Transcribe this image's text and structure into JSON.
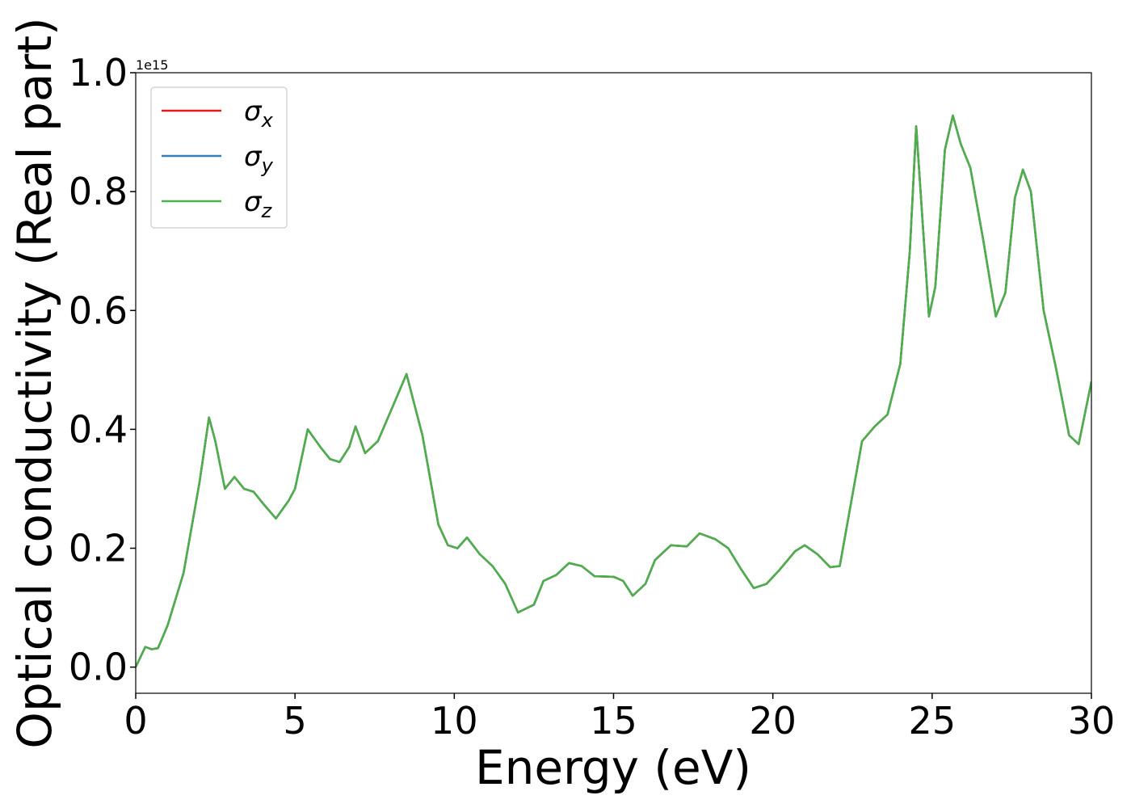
{
  "chart_data": {
    "type": "line",
    "xlabel": "Energy (eV)",
    "ylabel": "Optical conductivity (Real part)",
    "y_offset_label": "1e15",
    "xlim": [
      0,
      30
    ],
    "xticks": [
      0,
      5,
      10,
      15,
      20,
      25,
      30
    ],
    "ylim": [
      -0.044,
      1.0
    ],
    "yticks": [
      {
        "value": 0,
        "label": "0.0"
      },
      0.2,
      0.4,
      0.6,
      0.8,
      {
        "value": 1,
        "label": "1.0"
      }
    ],
    "legend": "upper left",
    "x": [
      0,
      0.3,
      0.5,
      0.7,
      1.0,
      1.5,
      2.0,
      2.3,
      2.5,
      2.8,
      3.1,
      3.4,
      3.7,
      4.0,
      4.4,
      4.8,
      5.0,
      5.4,
      5.8,
      6.1,
      6.4,
      6.7,
      6.9,
      7.2,
      7.6,
      8.0,
      8.5,
      9.0,
      9.5,
      9.8,
      10.1,
      10.4,
      10.8,
      11.2,
      11.6,
      12.0,
      12.5,
      12.8,
      13.2,
      13.6,
      14.0,
      14.4,
      15.0,
      15.3,
      15.6,
      16.0,
      16.3,
      16.8,
      17.3,
      17.7,
      18.2,
      18.6,
      19.0,
      19.4,
      19.8,
      20.2,
      20.7,
      21.0,
      21.4,
      21.8,
      22.1,
      22.4,
      22.8,
      23.2,
      23.6,
      24.0,
      24.3,
      24.5,
      24.7,
      24.9,
      25.1,
      25.4,
      25.65,
      25.9,
      26.2,
      26.6,
      27.0,
      27.3,
      27.6,
      27.85,
      28.1,
      28.5,
      28.9,
      29.3,
      29.6,
      30.0
    ],
    "series": [
      {
        "name": "σx",
        "color": "#e41a1c",
        "values": [
          0.0,
          0.034,
          0.03,
          0.032,
          0.07,
          0.158,
          0.31,
          0.42,
          0.38,
          0.3,
          0.32,
          0.3,
          0.295,
          0.275,
          0.25,
          0.28,
          0.3,
          0.4,
          0.37,
          0.35,
          0.345,
          0.37,
          0.405,
          0.36,
          0.38,
          0.43,
          0.493,
          0.39,
          0.24,
          0.205,
          0.2,
          0.218,
          0.19,
          0.17,
          0.14,
          0.092,
          0.105,
          0.145,
          0.155,
          0.175,
          0.17,
          0.153,
          0.152,
          0.145,
          0.12,
          0.14,
          0.18,
          0.205,
          0.203,
          0.225,
          0.215,
          0.2,
          0.165,
          0.133,
          0.14,
          0.163,
          0.195,
          0.205,
          0.19,
          0.168,
          0.17,
          0.26,
          0.38,
          0.405,
          0.425,
          0.51,
          0.7,
          0.91,
          0.75,
          0.59,
          0.64,
          0.87,
          0.928,
          0.88,
          0.84,
          0.72,
          0.59,
          0.63,
          0.79,
          0.837,
          0.8,
          0.6,
          0.5,
          0.39,
          0.375,
          0.48
        ]
      },
      {
        "name": "σy",
        "color": "#377eb8",
        "values": [
          0.0,
          0.034,
          0.03,
          0.032,
          0.07,
          0.158,
          0.31,
          0.42,
          0.38,
          0.3,
          0.32,
          0.3,
          0.295,
          0.275,
          0.25,
          0.28,
          0.3,
          0.4,
          0.37,
          0.35,
          0.345,
          0.37,
          0.405,
          0.36,
          0.38,
          0.43,
          0.493,
          0.39,
          0.24,
          0.205,
          0.2,
          0.218,
          0.19,
          0.17,
          0.14,
          0.092,
          0.105,
          0.145,
          0.155,
          0.175,
          0.17,
          0.153,
          0.152,
          0.145,
          0.12,
          0.14,
          0.18,
          0.205,
          0.203,
          0.225,
          0.215,
          0.2,
          0.165,
          0.133,
          0.14,
          0.163,
          0.195,
          0.205,
          0.19,
          0.168,
          0.17,
          0.26,
          0.38,
          0.405,
          0.425,
          0.51,
          0.7,
          0.91,
          0.75,
          0.59,
          0.64,
          0.87,
          0.928,
          0.88,
          0.84,
          0.72,
          0.59,
          0.63,
          0.79,
          0.837,
          0.8,
          0.6,
          0.5,
          0.39,
          0.375,
          0.48
        ]
      },
      {
        "name": "σz",
        "color": "#4daf4a",
        "values": [
          0.0,
          0.034,
          0.03,
          0.032,
          0.07,
          0.158,
          0.31,
          0.42,
          0.38,
          0.3,
          0.32,
          0.3,
          0.295,
          0.275,
          0.25,
          0.28,
          0.3,
          0.4,
          0.37,
          0.35,
          0.345,
          0.37,
          0.405,
          0.36,
          0.38,
          0.43,
          0.493,
          0.39,
          0.24,
          0.205,
          0.2,
          0.218,
          0.19,
          0.17,
          0.14,
          0.092,
          0.105,
          0.145,
          0.155,
          0.175,
          0.17,
          0.153,
          0.152,
          0.145,
          0.12,
          0.14,
          0.18,
          0.205,
          0.203,
          0.225,
          0.215,
          0.2,
          0.165,
          0.133,
          0.14,
          0.163,
          0.195,
          0.205,
          0.19,
          0.168,
          0.17,
          0.26,
          0.38,
          0.405,
          0.425,
          0.51,
          0.7,
          0.91,
          0.75,
          0.59,
          0.64,
          0.87,
          0.928,
          0.88,
          0.84,
          0.72,
          0.59,
          0.63,
          0.79,
          0.837,
          0.8,
          0.6,
          0.5,
          0.39,
          0.375,
          0.48
        ]
      }
    ]
  }
}
